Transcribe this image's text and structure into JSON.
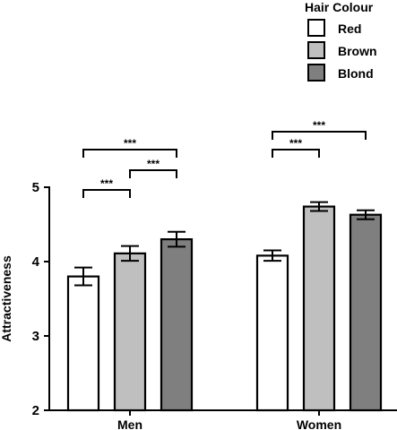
{
  "chart_data": {
    "type": "bar",
    "title": "",
    "xlabel": "",
    "ylabel": "Attractiveness",
    "ylim": [
      2,
      5
    ],
    "yticks": [
      "2",
      "3",
      "4",
      "5"
    ],
    "categories": [
      "Men",
      "Women"
    ],
    "legend": {
      "title": "Hair Colour",
      "placement": "top-right"
    },
    "series": [
      {
        "name": "Red",
        "color": "#ffffff",
        "values": [
          3.8,
          4.08
        ],
        "errors": [
          0.12,
          0.07
        ]
      },
      {
        "name": "Brown",
        "color": "#bfbfbf",
        "values": [
          4.11,
          4.74
        ],
        "errors": [
          0.1,
          0.06
        ]
      },
      {
        "name": "Blond",
        "color": "#7f7f7f",
        "values": [
          4.3,
          4.63
        ],
        "errors": [
          0.1,
          0.06
        ]
      }
    ],
    "significance": [
      {
        "category": "Men",
        "from": "Red",
        "to": "Brown",
        "label": "***"
      },
      {
        "category": "Men",
        "from": "Brown",
        "to": "Blond",
        "label": "***"
      },
      {
        "category": "Men",
        "from": "Red",
        "to": "Blond",
        "label": "***"
      },
      {
        "category": "Women",
        "from": "Red",
        "to": "Brown",
        "label": "***"
      },
      {
        "category": "Women",
        "from": "Red",
        "to": "Blond",
        "label": "***"
      }
    ],
    "grid": false
  }
}
